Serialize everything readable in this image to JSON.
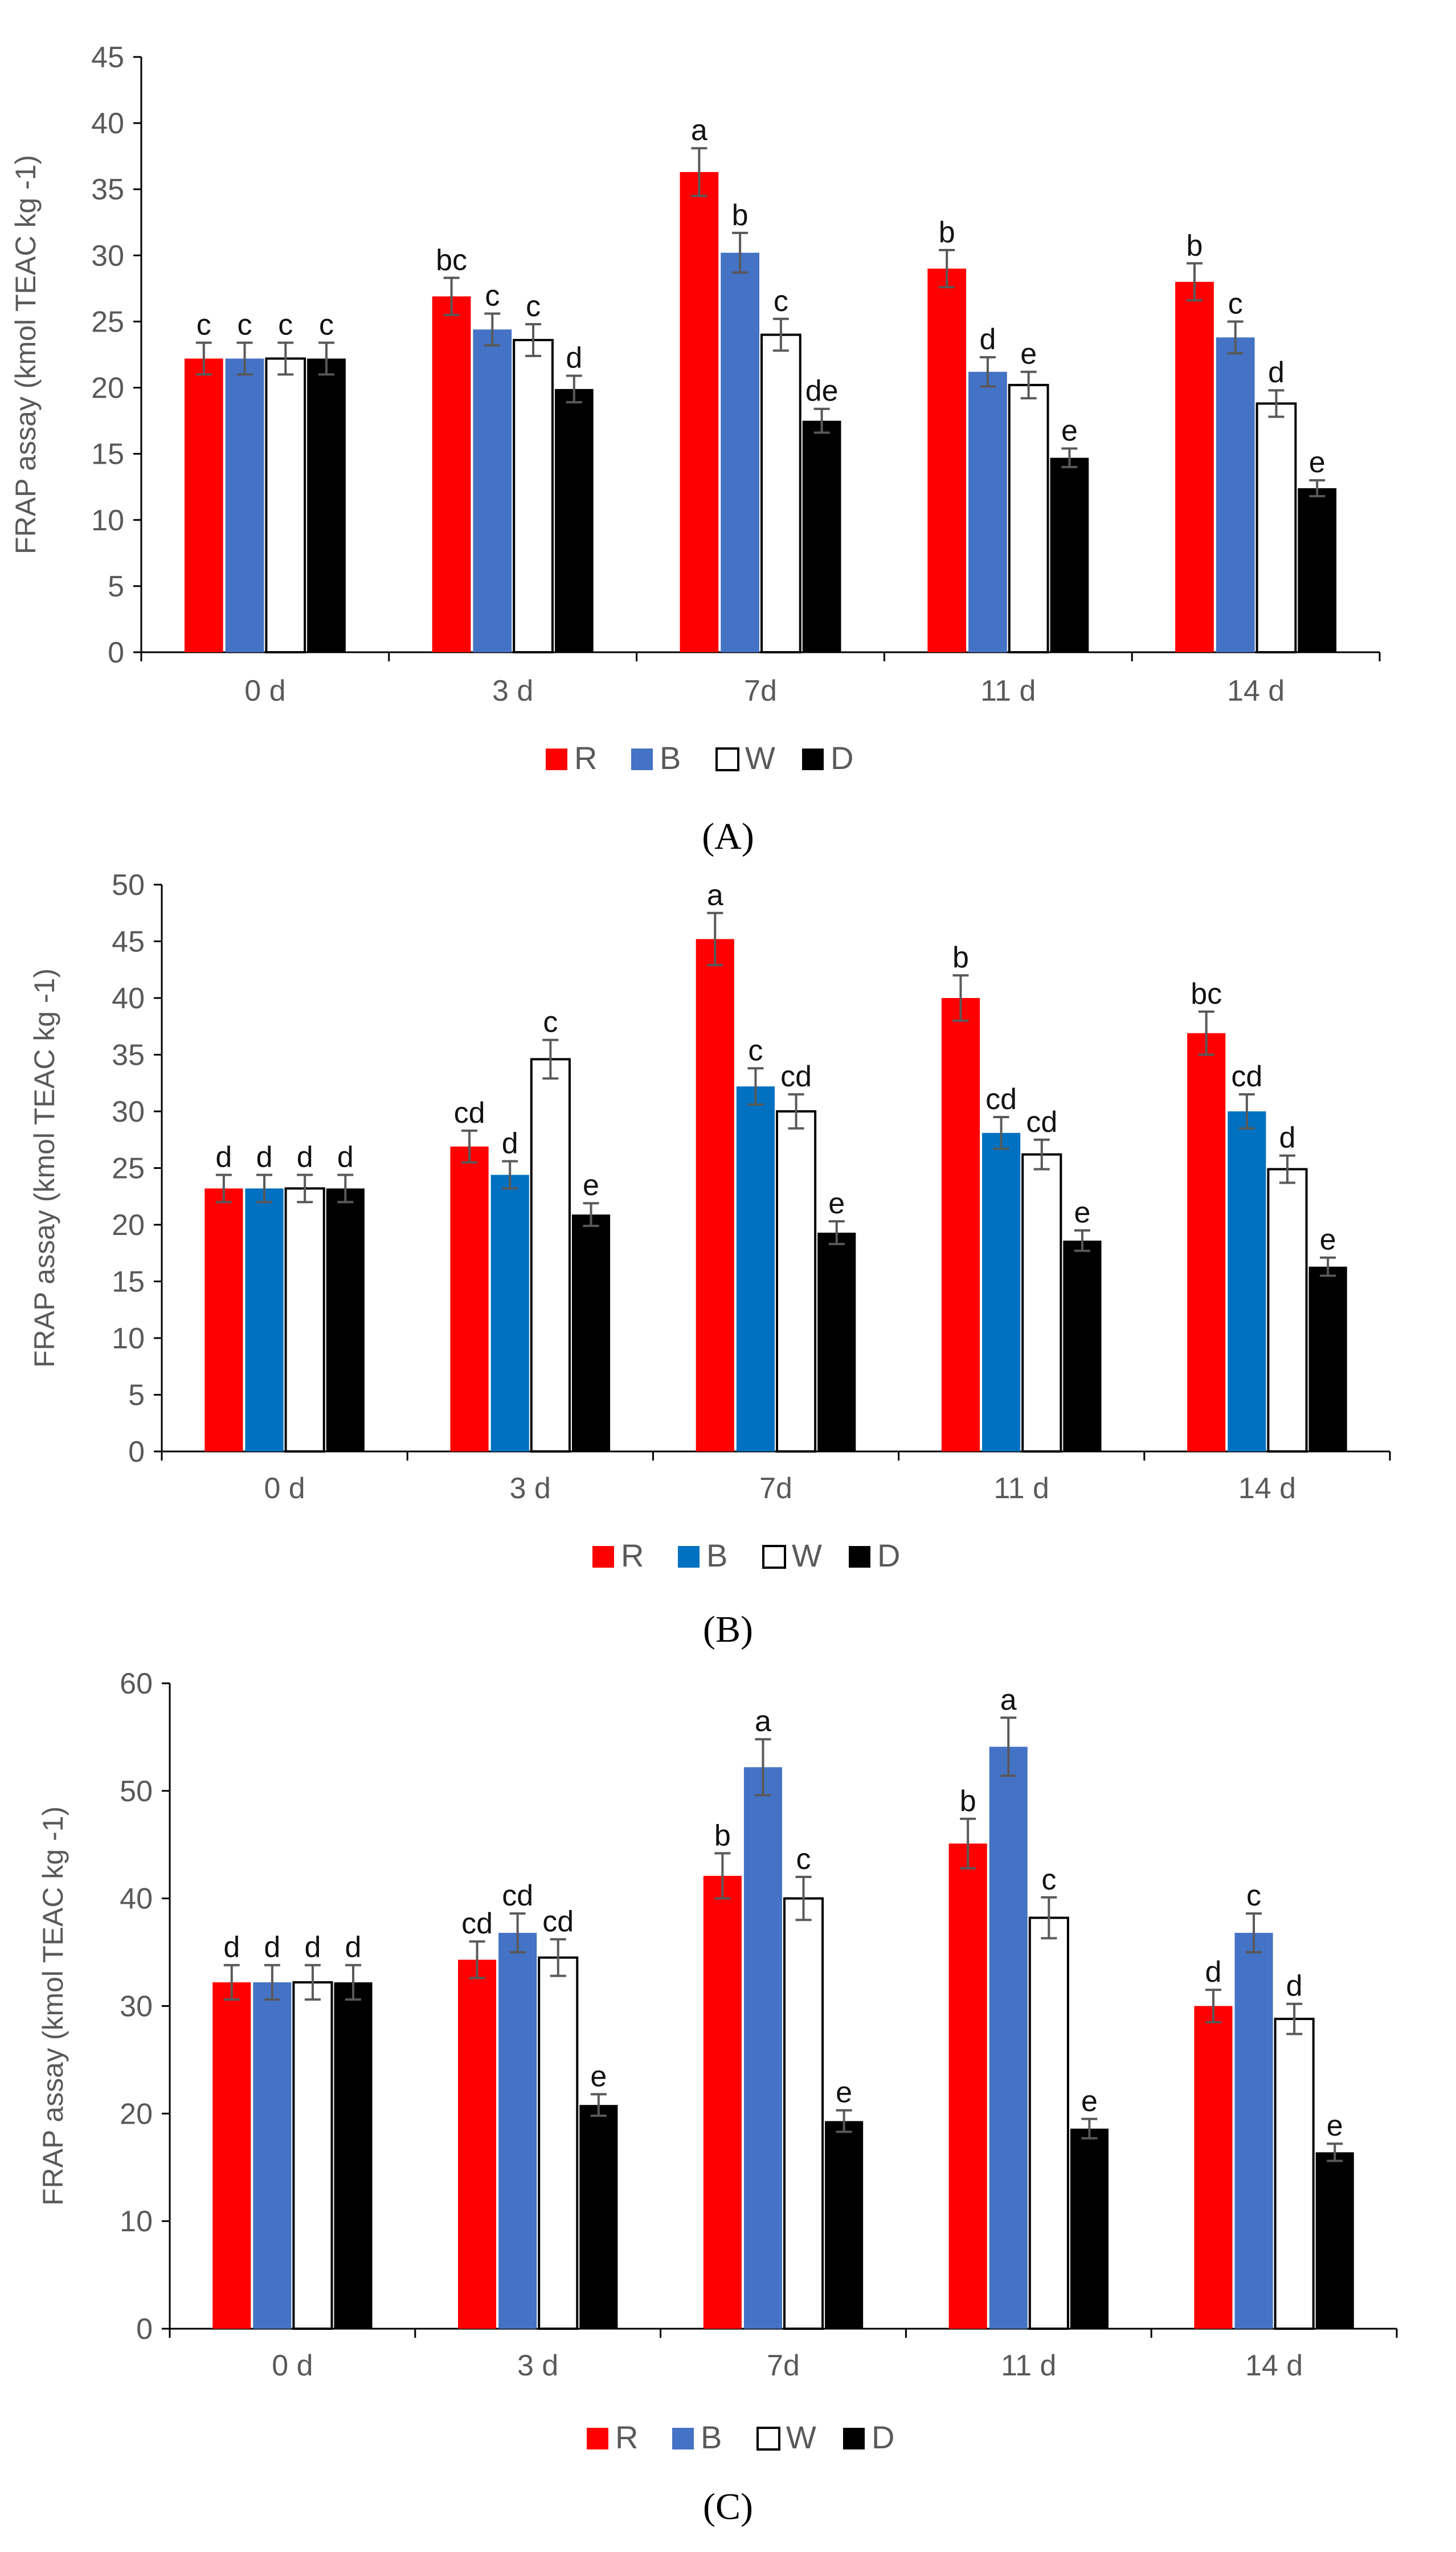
{
  "chart_data": [
    {
      "type": "bar",
      "panel_label": "(A)",
      "categories": [
        "0 d",
        "3 d",
        "7d",
        "11 d",
        "14 d"
      ],
      "ylabel": "FRAP assay (kmol TEAC kg -1)",
      "xlabel": "",
      "ylim": [
        0,
        45
      ],
      "yticks": [
        0,
        5,
        10,
        15,
        20,
        25,
        30,
        35,
        40,
        45
      ],
      "legend_position": "bottom",
      "series": [
        {
          "name": "R",
          "color": "#ff0000",
          "values": [
            22.2,
            26.9,
            36.3,
            29.0,
            28.0
          ],
          "errors": [
            1.2,
            1.4,
            1.8,
            1.4,
            1.4
          ],
          "letters": [
            "c",
            "bc",
            "a",
            "b",
            "b"
          ]
        },
        {
          "name": "B",
          "color": "#4472c4",
          "values": [
            22.2,
            24.4,
            30.2,
            21.2,
            23.8
          ],
          "errors": [
            1.2,
            1.2,
            1.5,
            1.1,
            1.2
          ],
          "letters": [
            "c",
            "c",
            "b",
            "d",
            "c"
          ]
        },
        {
          "name": "W",
          "color": "#ffffff",
          "values": [
            22.2,
            23.6,
            24.0,
            20.2,
            18.8
          ],
          "errors": [
            1.2,
            1.2,
            1.2,
            1.0,
            1.0
          ],
          "letters": [
            "c",
            "c",
            "c",
            "e",
            "d"
          ]
        },
        {
          "name": "D",
          "color": "#000000",
          "values": [
            22.2,
            19.9,
            17.5,
            14.7,
            12.4
          ],
          "errors": [
            1.2,
            1.0,
            0.9,
            0.7,
            0.6
          ],
          "letters": [
            "c",
            "d",
            "de",
            "e",
            "e"
          ]
        }
      ]
    },
    {
      "type": "bar",
      "panel_label": "(B)",
      "categories": [
        "0 d",
        "3 d",
        "7d",
        "11 d",
        "14 d"
      ],
      "ylabel": "FRAP assay (kmol TEAC kg -1)",
      "xlabel": "",
      "ylim": [
        0,
        50
      ],
      "yticks": [
        0,
        5,
        10,
        15,
        20,
        25,
        30,
        35,
        40,
        45,
        50
      ],
      "legend_position": "bottom",
      "series": [
        {
          "name": "R",
          "color": "#ff0000",
          "values": [
            23.2,
            26.9,
            45.2,
            40.0,
            36.9
          ],
          "errors": [
            1.2,
            1.4,
            2.3,
            2.0,
            1.9
          ],
          "letters": [
            "d",
            "cd",
            "a",
            "b",
            "bc"
          ]
        },
        {
          "name": "B",
          "color": "#0070c0",
          "values": [
            23.2,
            24.4,
            32.2,
            28.1,
            30.0
          ],
          "errors": [
            1.2,
            1.2,
            1.6,
            1.4,
            1.5
          ],
          "letters": [
            "d",
            "d",
            "c",
            "cd",
            "cd"
          ]
        },
        {
          "name": "W",
          "color": "#ffffff",
          "values": [
            23.2,
            34.6,
            30.0,
            26.2,
            24.9
          ],
          "errors": [
            1.2,
            1.7,
            1.5,
            1.3,
            1.2
          ],
          "letters": [
            "d",
            "c",
            "cd",
            "cd",
            "d"
          ]
        },
        {
          "name": "D",
          "color": "#000000",
          "values": [
            23.2,
            20.9,
            19.3,
            18.6,
            16.3
          ],
          "errors": [
            1.2,
            1.0,
            1.0,
            0.9,
            0.8
          ],
          "letters": [
            "d",
            "e",
            "e",
            "e",
            "e"
          ]
        }
      ]
    },
    {
      "type": "bar",
      "panel_label": "(C)",
      "categories": [
        "0 d",
        "3 d",
        "7d",
        "11 d",
        "14 d"
      ],
      "ylabel": "FRAP assay (kmol TEAC kg -1)",
      "xlabel": "",
      "ylim": [
        0,
        60
      ],
      "yticks": [
        0,
        10,
        20,
        30,
        40,
        50,
        60
      ],
      "legend_position": "bottom",
      "series": [
        {
          "name": "R",
          "color": "#ff0000",
          "values": [
            32.2,
            34.3,
            42.1,
            45.1,
            30.0
          ],
          "errors": [
            1.6,
            1.7,
            2.1,
            2.3,
            1.5
          ],
          "letters": [
            "d",
            "cd",
            "b",
            "b",
            "d"
          ]
        },
        {
          "name": "B",
          "color": "#4472c4",
          "values": [
            32.2,
            36.8,
            52.2,
            54.1,
            36.8
          ],
          "errors": [
            1.6,
            1.8,
            2.6,
            2.7,
            1.8
          ],
          "letters": [
            "d",
            "cd",
            "a",
            "a",
            "c"
          ]
        },
        {
          "name": "W",
          "color": "#ffffff",
          "values": [
            32.2,
            34.5,
            40.0,
            38.2,
            28.8
          ],
          "errors": [
            1.6,
            1.7,
            2.0,
            1.9,
            1.4
          ],
          "letters": [
            "d",
            "cd",
            "c",
            "c",
            "d"
          ]
        },
        {
          "name": "D",
          "color": "#000000",
          "values": [
            32.2,
            20.8,
            19.3,
            18.6,
            16.4
          ],
          "errors": [
            1.6,
            1.0,
            1.0,
            0.9,
            0.8
          ],
          "letters": [
            "d",
            "e",
            "e",
            "e",
            "e"
          ]
        }
      ]
    }
  ]
}
